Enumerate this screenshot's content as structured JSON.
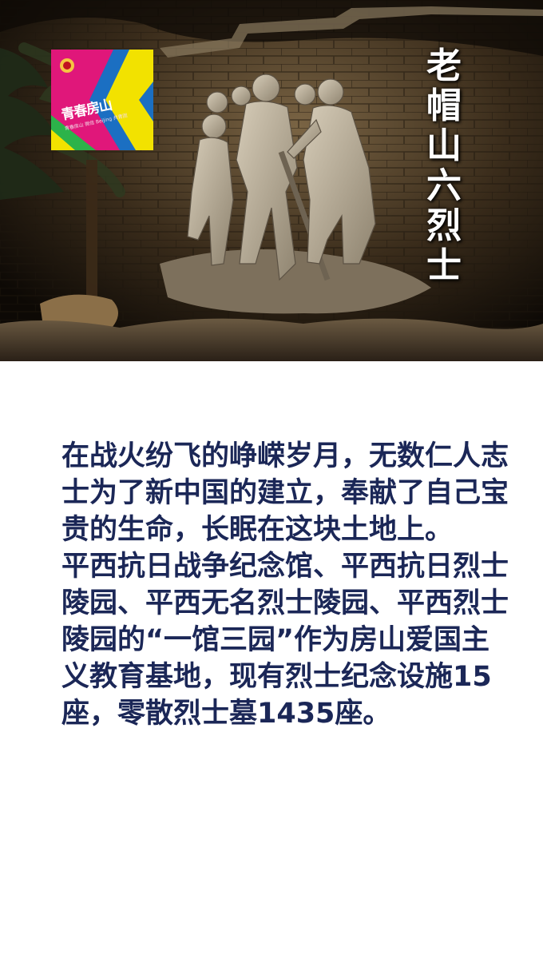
{
  "hero": {
    "title_chars": [
      "老",
      "帽",
      "山",
      "六",
      "烈",
      "士"
    ],
    "logo": {
      "main_text": "青春房山",
      "sub_text": "青春房山 微信 Beijing 共青团"
    },
    "colors": {
      "wall": "#3b2d1c",
      "statue": "#b9ad98",
      "logo_magenta": "#e0177a",
      "logo_yellow": "#f2e200",
      "logo_green": "#2cb34a",
      "logo_blue": "#1b6fc2"
    }
  },
  "article": {
    "paragraphs": [
      "在战火纷飞的峥嵘岁月，无数仁人志士为了新中国的建立，奉献了自己宝贵的生命，长眠在这块土地上。",
      "平西抗日战争纪念馆、平西抗日烈士陵园、平西无名烈士陵园、平西烈士陵园的“一馆三园”作为房山爱国主义教育基地，现有烈士纪念设施15座，零散烈士墓1435座。"
    ],
    "text_color": "#1b2757"
  }
}
